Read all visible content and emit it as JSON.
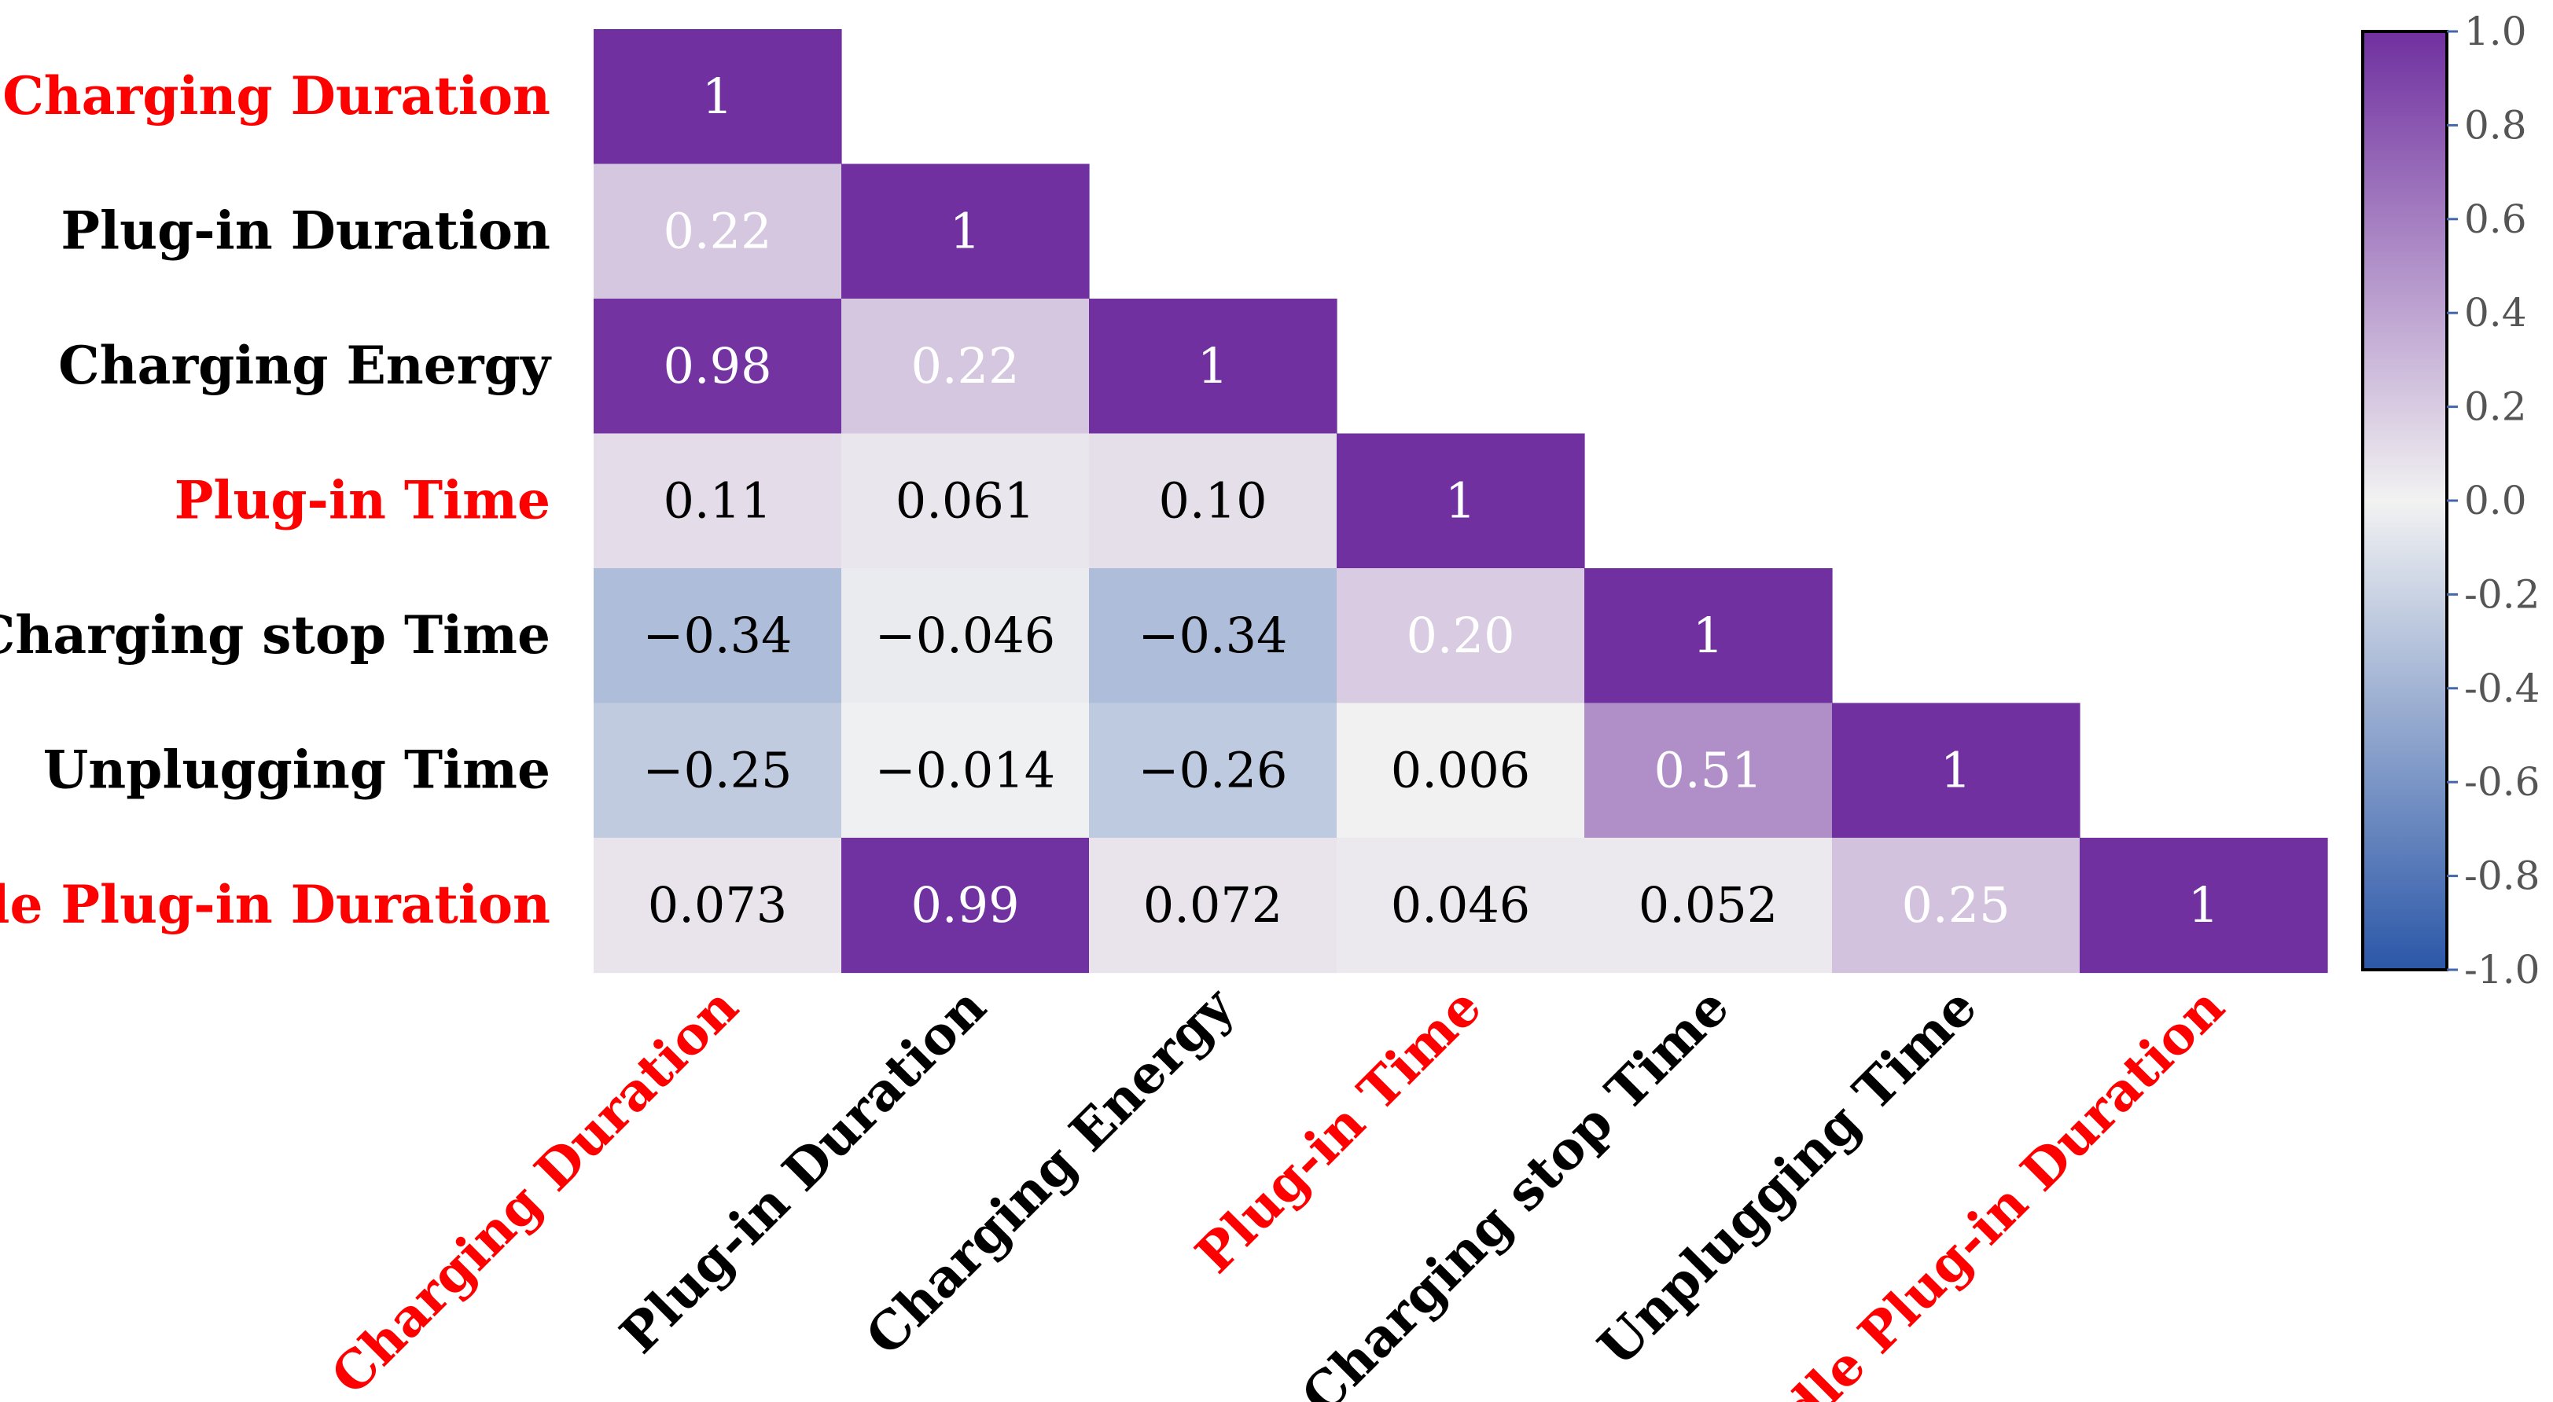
{
  "chart_data": {
    "type": "heatmap",
    "title": "",
    "variables": [
      {
        "name": "Charging Duration",
        "highlight": true
      },
      {
        "name": "Plug-in Duration",
        "highlight": false
      },
      {
        "name": "Charging Energy",
        "highlight": false
      },
      {
        "name": "Plug-in Time",
        "highlight": true
      },
      {
        "name": "Charging stop Time",
        "highlight": false
      },
      {
        "name": "Unplugging Time",
        "highlight": false
      },
      {
        "name": "Idle Plug-in Duration",
        "highlight": true
      }
    ],
    "matrix_lower_triangle": [
      [
        1
      ],
      [
        0.22,
        1
      ],
      [
        0.98,
        0.22,
        1
      ],
      [
        0.11,
        0.061,
        0.1,
        1
      ],
      [
        -0.34,
        -0.046,
        -0.34,
        0.2,
        1
      ],
      [
        -0.25,
        -0.014,
        -0.26,
        0.006,
        0.51,
        1
      ],
      [
        0.073,
        0.99,
        0.072,
        0.046,
        0.052,
        0.25,
        1
      ]
    ],
    "cell_labels": [
      [
        "1"
      ],
      [
        "0.22",
        "1"
      ],
      [
        "0.98",
        "0.22",
        "1"
      ],
      [
        "0.11",
        "0.061",
        "0.10",
        "1"
      ],
      [
        "−0.34",
        "−0.046",
        "−0.34",
        "0.20",
        "1"
      ],
      [
        "−0.25",
        "−0.014",
        "−0.26",
        "0.006",
        "0.51",
        "1"
      ],
      [
        "0.073",
        "0.99",
        "0.072",
        "0.046",
        "0.052",
        "0.25",
        "1"
      ]
    ],
    "colorbar": {
      "range": [
        -1.0,
        1.0
      ],
      "ticks": [
        1.0,
        0.8,
        0.6,
        0.4,
        0.2,
        0.0,
        -0.2,
        -0.4,
        -0.6,
        -0.8,
        -1.0
      ],
      "tick_labels": [
        "1.0",
        "0.8",
        "0.6",
        "0.4",
        "0.2",
        "0.0",
        "-0.2",
        "-0.4",
        "-0.6",
        "-0.8",
        "-1.0"
      ],
      "colors": {
        "max": "#7030a0",
        "mid": "#f2f2f2",
        "min": "#2b57a8"
      }
    },
    "label_colors": {
      "highlight": "#ff0000",
      "normal": "#000000"
    },
    "text_colors": {
      "light": "#ffffff",
      "dark": "#000000"
    }
  }
}
